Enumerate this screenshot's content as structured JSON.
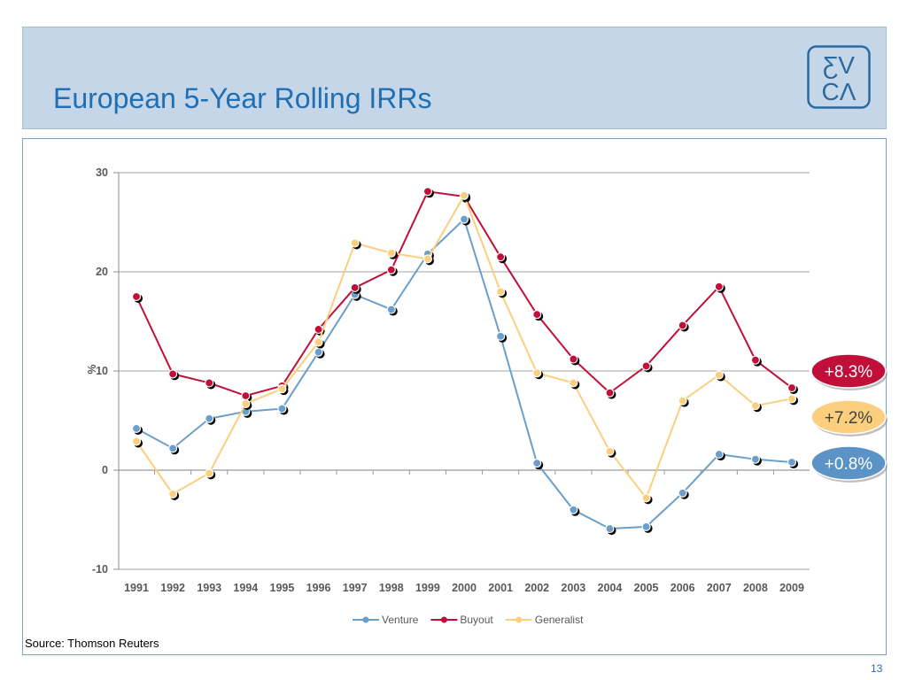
{
  "slide": {
    "title": "European 5-Year Rolling IRRs",
    "source": "Source: Thomson Reuters",
    "page_number": "13",
    "logo": {
      "top": "ƸV",
      "bottom": "CΛ",
      "color": "#2a6a9e"
    }
  },
  "chart_data": {
    "type": "line",
    "x": [
      "1991",
      "1992",
      "1993",
      "1994",
      "1995",
      "1996",
      "1997",
      "1998",
      "1999",
      "2000",
      "2001",
      "2002",
      "2003",
      "2004",
      "2005",
      "2006",
      "2007",
      "2008",
      "2009"
    ],
    "ylabel": "%",
    "ylim": [
      -10,
      30
    ],
    "yticks": [
      -10,
      0,
      10,
      20,
      30
    ],
    "grid": true,
    "legend_position": "bottom",
    "series": [
      {
        "name": "Venture",
        "color": "#6b9fcb",
        "values": [
          4.2,
          2.2,
          5.2,
          5.9,
          6.2,
          11.9,
          17.7,
          16.2,
          21.8,
          25.3,
          13.5,
          0.7,
          -4.0,
          -5.9,
          -5.7,
          -2.3,
          1.6,
          1.1,
          0.8
        ]
      },
      {
        "name": "Buyout",
        "color": "#c0103a",
        "values": [
          17.5,
          9.7,
          8.8,
          7.5,
          8.5,
          14.2,
          18.4,
          20.2,
          28.1,
          27.6,
          21.5,
          15.7,
          11.2,
          7.8,
          10.5,
          14.6,
          18.5,
          11.1,
          8.3
        ]
      },
      {
        "name": "Generalist",
        "color": "#fbcf7d",
        "values": [
          2.9,
          -2.4,
          -0.3,
          6.7,
          8.2,
          12.9,
          22.9,
          21.9,
          21.3,
          27.7,
          18.0,
          9.8,
          8.8,
          1.9,
          -2.8,
          7.0,
          9.6,
          6.5,
          7.2
        ]
      }
    ],
    "callouts": [
      {
        "label": "+8.3%",
        "fill": "#c0103a",
        "text_color": "#ffffff"
      },
      {
        "label": "+7.2%",
        "fill": "#fbcf7d",
        "text_color": "#404040"
      },
      {
        "label": "+0.8%",
        "fill": "#5b93c7",
        "text_color": "#ffffff"
      }
    ]
  }
}
